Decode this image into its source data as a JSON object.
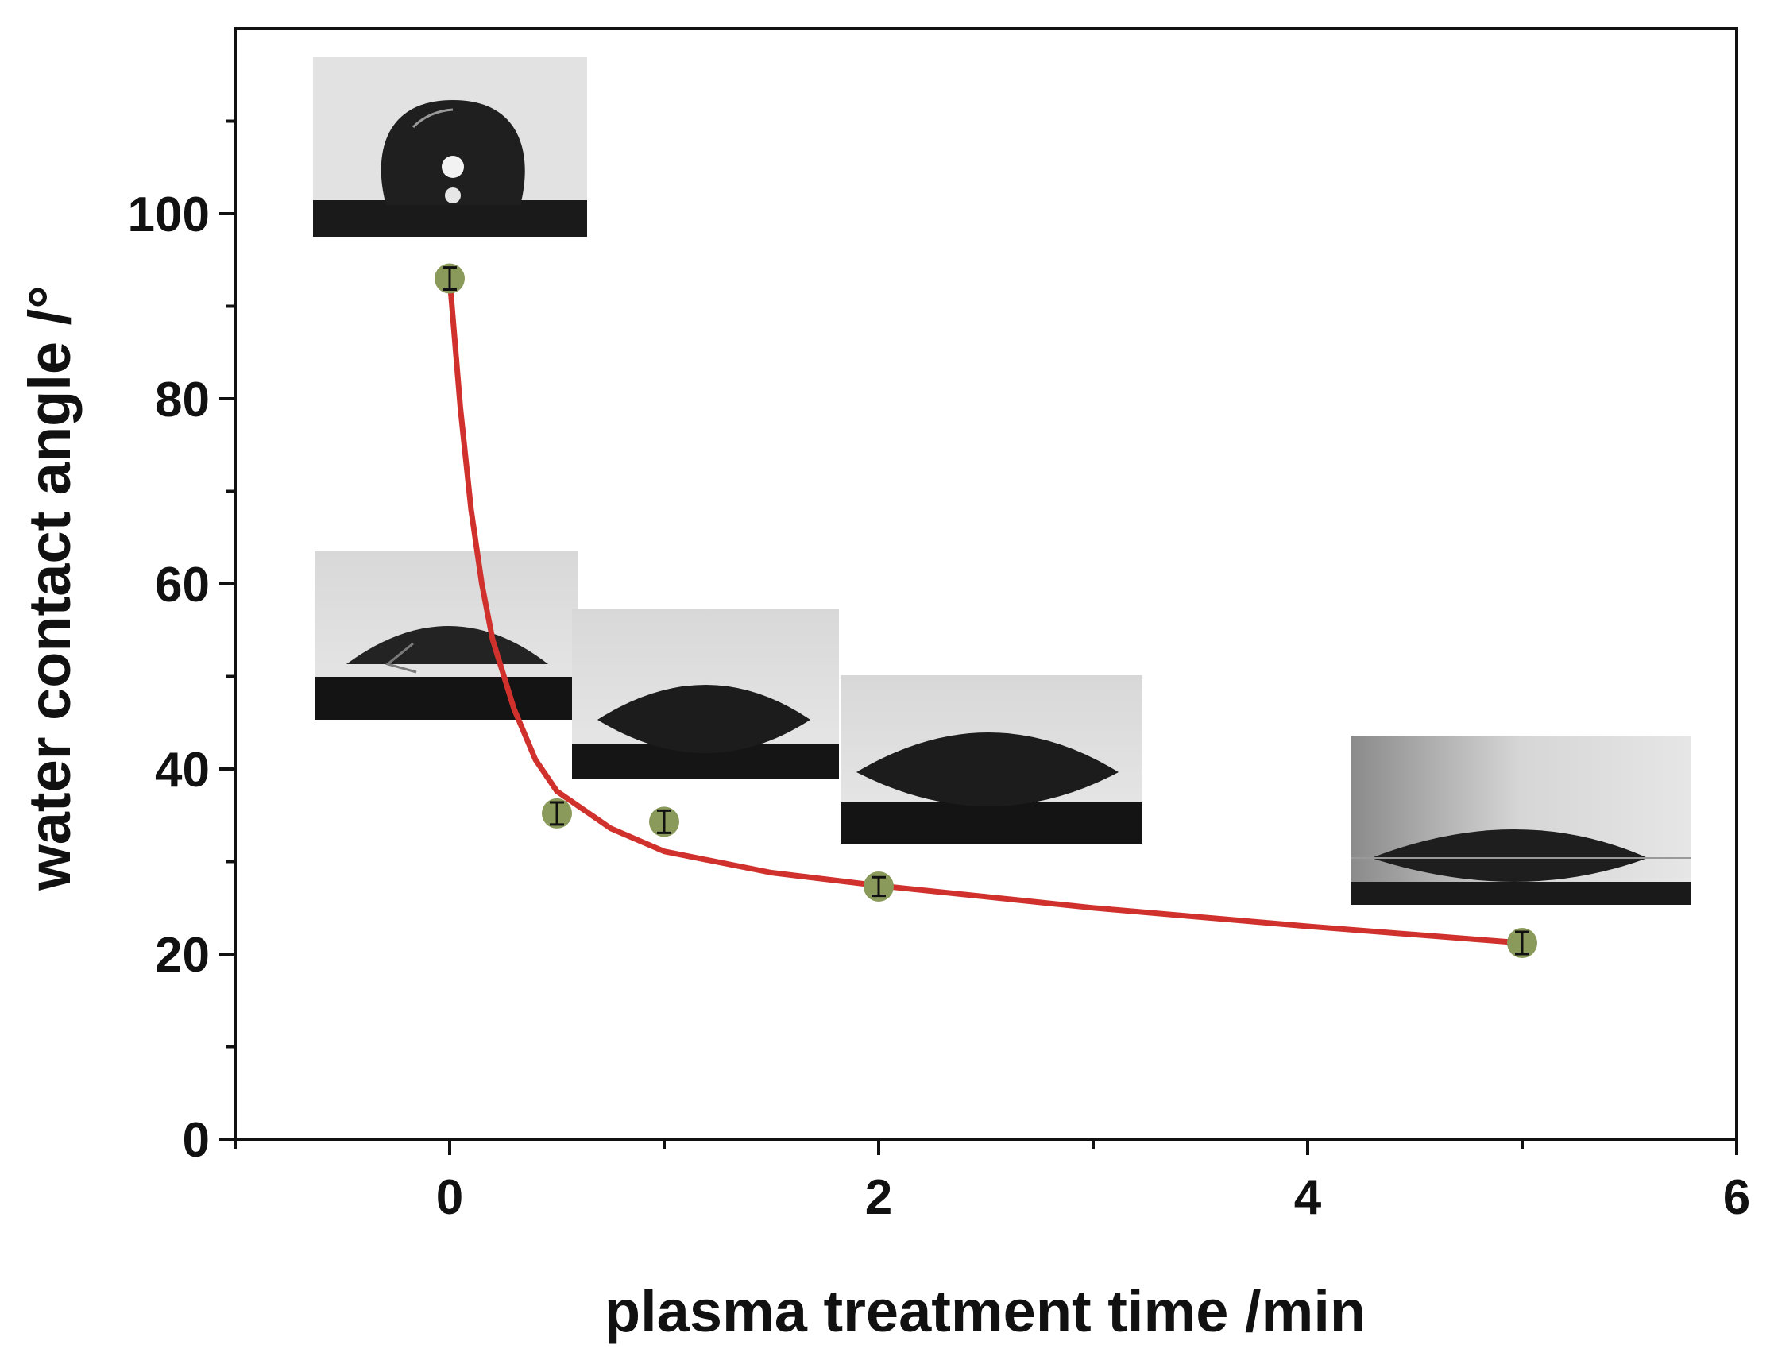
{
  "chart_data": {
    "type": "scatter",
    "title": "",
    "xlabel": "plasma treatment time /min",
    "ylabel": "water contact angle /°",
    "xlim": [
      -1,
      6
    ],
    "ylim": [
      0,
      120
    ],
    "xticks": [
      0,
      2,
      4,
      6
    ],
    "xtick_labels": [
      "0",
      "2",
      "4",
      "6"
    ],
    "yticks": [
      0,
      20,
      40,
      60,
      80,
      100
    ],
    "ytick_labels": [
      "0",
      "20",
      "40",
      "60",
      "80",
      "100"
    ],
    "grid": false,
    "legend": "none",
    "series": [
      {
        "kind": "points",
        "marker_color": "#8a9a5b",
        "x": [
          0,
          0.5,
          1,
          2,
          5
        ],
        "y": [
          93,
          35.2,
          34.3,
          27.3,
          21.2
        ],
        "error": [
          1.2,
          1.2,
          1.2,
          1.0,
          1.2
        ]
      },
      {
        "kind": "fit-line",
        "line_color": "#d0312d",
        "x": [
          0,
          0.05,
          0.1,
          0.15,
          0.2,
          0.3,
          0.4,
          0.5,
          0.75,
          1,
          1.5,
          2,
          3,
          4,
          5
        ],
        "y": [
          93,
          79,
          68,
          60,
          54,
          46.5,
          41,
          37.6,
          33.6,
          31.1,
          28.8,
          27.4,
          25.0,
          23.0,
          21.2
        ]
      }
    ],
    "insets": [
      {
        "label": "droplet-0min",
        "angle": 93
      },
      {
        "label": "droplet-0.5min",
        "angle": 35
      },
      {
        "label": "droplet-1min",
        "angle": 34
      },
      {
        "label": "droplet-2min",
        "angle": 27
      },
      {
        "label": "droplet-5min",
        "angle": 21
      }
    ],
    "colors": {
      "axis": "#111111",
      "fit": "#d0312d",
      "marker": "#8a9a5b"
    }
  }
}
